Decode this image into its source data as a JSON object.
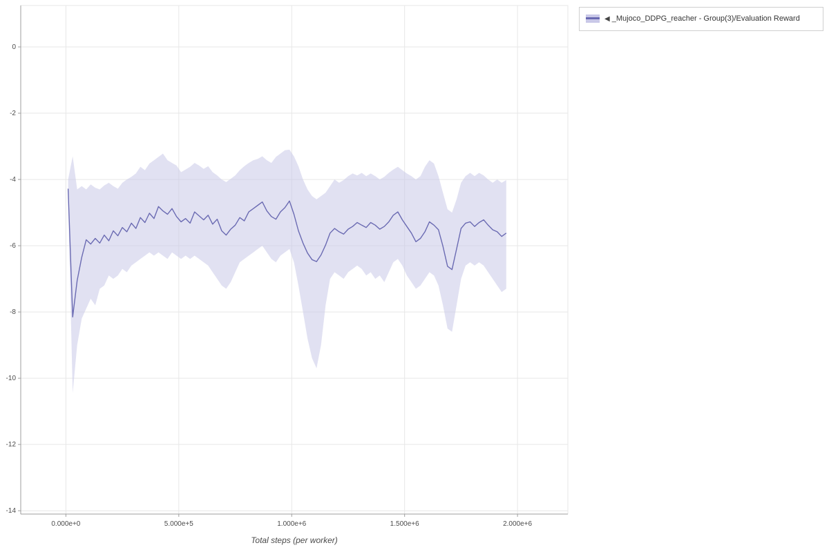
{
  "legend": {
    "icon": "◀",
    "label": "_Mujoco_DDPG_reacher - Group(3)/Evaluation Reward"
  },
  "colors": {
    "line": "#6a6ab2",
    "band": "#c9c8e8",
    "band_opacity": 0.55,
    "grid": "#e7e7e7",
    "axis": "#9e9e9e",
    "tick_text": "#4a4a4a"
  },
  "chart_data": {
    "type": "line",
    "title": "",
    "xlabel": "Total steps (per worker)",
    "ylabel": "",
    "grid": true,
    "legend_position": "outside-top-right",
    "xlim": [
      -200000,
      2223000
    ],
    "ylim": [
      -14.1,
      1.25
    ],
    "x_ticks": [
      {
        "value": 0,
        "label": "0.000e+0"
      },
      {
        "value": 500000,
        "label": "5.000e+5"
      },
      {
        "value": 1000000,
        "label": "1.000e+6"
      },
      {
        "value": 1500000,
        "label": "1.500e+6"
      },
      {
        "value": 2000000,
        "label": "2.000e+6"
      }
    ],
    "y_ticks": [
      {
        "value": 0,
        "label": "0"
      },
      {
        "value": -2,
        "label": "-2"
      },
      {
        "value": -4,
        "label": "-4"
      },
      {
        "value": -6,
        "label": "-6"
      },
      {
        "value": -8,
        "label": "-8"
      },
      {
        "value": -10,
        "label": "-10"
      },
      {
        "value": -12,
        "label": "-12"
      },
      {
        "value": -14,
        "label": "-14"
      }
    ],
    "series": [
      {
        "name": "_Mujoco_DDPG_reacher - Group(3)/Evaluation Reward",
        "x": [
          10000,
          30000,
          50000,
          70000,
          90000,
          110000,
          130000,
          150000,
          170000,
          190000,
          210000,
          230000,
          250000,
          270000,
          290000,
          310000,
          330000,
          350000,
          370000,
          390000,
          410000,
          430000,
          450000,
          470000,
          490000,
          510000,
          530000,
          550000,
          570000,
          590000,
          610000,
          630000,
          650000,
          670000,
          690000,
          710000,
          730000,
          750000,
          770000,
          790000,
          810000,
          830000,
          850000,
          870000,
          890000,
          910000,
          930000,
          950000,
          970000,
          990000,
          1010000,
          1030000,
          1050000,
          1070000,
          1090000,
          1110000,
          1130000,
          1150000,
          1170000,
          1190000,
          1210000,
          1230000,
          1250000,
          1270000,
          1290000,
          1310000,
          1330000,
          1350000,
          1370000,
          1390000,
          1410000,
          1430000,
          1450000,
          1470000,
          1490000,
          1510000,
          1530000,
          1550000,
          1570000,
          1590000,
          1610000,
          1630000,
          1650000,
          1670000,
          1690000,
          1710000,
          1730000,
          1750000,
          1770000,
          1790000,
          1810000,
          1830000,
          1850000,
          1870000,
          1890000,
          1910000,
          1930000,
          1950000
        ],
        "mean": [
          -4.28,
          -8.15,
          -7.05,
          -6.35,
          -5.82,
          -5.95,
          -5.78,
          -5.92,
          -5.68,
          -5.85,
          -5.55,
          -5.7,
          -5.45,
          -5.58,
          -5.32,
          -5.48,
          -5.15,
          -5.3,
          -5.02,
          -5.18,
          -4.82,
          -4.95,
          -5.05,
          -4.88,
          -5.12,
          -5.28,
          -5.18,
          -5.32,
          -4.98,
          -5.1,
          -5.22,
          -5.08,
          -5.35,
          -5.2,
          -5.55,
          -5.68,
          -5.5,
          -5.38,
          -5.15,
          -5.25,
          -4.98,
          -4.88,
          -4.78,
          -4.68,
          -4.95,
          -5.12,
          -5.2,
          -4.98,
          -4.85,
          -4.65,
          -5.05,
          -5.55,
          -5.92,
          -6.22,
          -6.42,
          -6.48,
          -6.28,
          -5.98,
          -5.62,
          -5.48,
          -5.58,
          -5.65,
          -5.5,
          -5.42,
          -5.3,
          -5.38,
          -5.45,
          -5.3,
          -5.38,
          -5.5,
          -5.42,
          -5.28,
          -5.08,
          -4.98,
          -5.22,
          -5.42,
          -5.62,
          -5.88,
          -5.78,
          -5.58,
          -5.28,
          -5.38,
          -5.52,
          -6.02,
          -6.62,
          -6.72,
          -6.1,
          -5.48,
          -5.32,
          -5.28,
          -5.42,
          -5.3,
          -5.22,
          -5.38,
          -5.52,
          -5.58,
          -5.72,
          -5.62
        ],
        "upper": [
          -4.0,
          -3.3,
          -4.3,
          -4.2,
          -4.3,
          -4.15,
          -4.25,
          -4.3,
          -4.18,
          -4.1,
          -4.2,
          -4.28,
          -4.1,
          -4.0,
          -3.92,
          -3.82,
          -3.62,
          -3.72,
          -3.52,
          -3.42,
          -3.32,
          -3.22,
          -3.42,
          -3.5,
          -3.58,
          -3.78,
          -3.7,
          -3.62,
          -3.5,
          -3.58,
          -3.68,
          -3.6,
          -3.78,
          -3.88,
          -4.0,
          -4.08,
          -3.98,
          -3.88,
          -3.72,
          -3.6,
          -3.5,
          -3.42,
          -3.38,
          -3.3,
          -3.42,
          -3.5,
          -3.32,
          -3.22,
          -3.12,
          -3.1,
          -3.3,
          -3.6,
          -4.0,
          -4.3,
          -4.5,
          -4.6,
          -4.5,
          -4.4,
          -4.2,
          -4.0,
          -4.1,
          -4.02,
          -3.9,
          -3.82,
          -3.88,
          -3.8,
          -3.9,
          -3.82,
          -3.9,
          -4.0,
          -3.92,
          -3.8,
          -3.7,
          -3.62,
          -3.72,
          -3.82,
          -3.9,
          -4.0,
          -3.9,
          -3.62,
          -3.42,
          -3.52,
          -3.9,
          -4.4,
          -4.9,
          -5.0,
          -4.6,
          -4.1,
          -3.9,
          -3.8,
          -3.9,
          -3.8,
          -3.88,
          -4.0,
          -4.1,
          -4.0,
          -4.1,
          -4.02
        ],
        "lower": [
          -4.6,
          -10.45,
          -9.0,
          -8.2,
          -7.9,
          -7.6,
          -7.8,
          -7.3,
          -7.2,
          -6.9,
          -7.0,
          -6.9,
          -6.7,
          -6.8,
          -6.6,
          -6.5,
          -6.4,
          -6.3,
          -6.2,
          -6.3,
          -6.2,
          -6.3,
          -6.4,
          -6.2,
          -6.3,
          -6.4,
          -6.3,
          -6.4,
          -6.3,
          -6.4,
          -6.5,
          -6.6,
          -6.8,
          -7.0,
          -7.2,
          -7.3,
          -7.1,
          -6.8,
          -6.5,
          -6.4,
          -6.3,
          -6.2,
          -6.1,
          -6.0,
          -6.2,
          -6.4,
          -6.5,
          -6.3,
          -6.2,
          -6.1,
          -6.5,
          -7.2,
          -8.0,
          -8.8,
          -9.4,
          -9.7,
          -9.0,
          -7.8,
          -7.0,
          -6.8,
          -6.9,
          -7.0,
          -6.8,
          -6.7,
          -6.6,
          -6.7,
          -6.9,
          -6.8,
          -7.0,
          -6.9,
          -7.1,
          -6.8,
          -6.5,
          -6.4,
          -6.6,
          -6.9,
          -7.1,
          -7.3,
          -7.2,
          -7.0,
          -6.8,
          -6.9,
          -7.2,
          -7.8,
          -8.5,
          -8.6,
          -7.8,
          -7.0,
          -6.6,
          -6.5,
          -6.6,
          -6.5,
          -6.6,
          -6.8,
          -7.0,
          -7.2,
          -7.4,
          -7.3
        ]
      }
    ]
  }
}
